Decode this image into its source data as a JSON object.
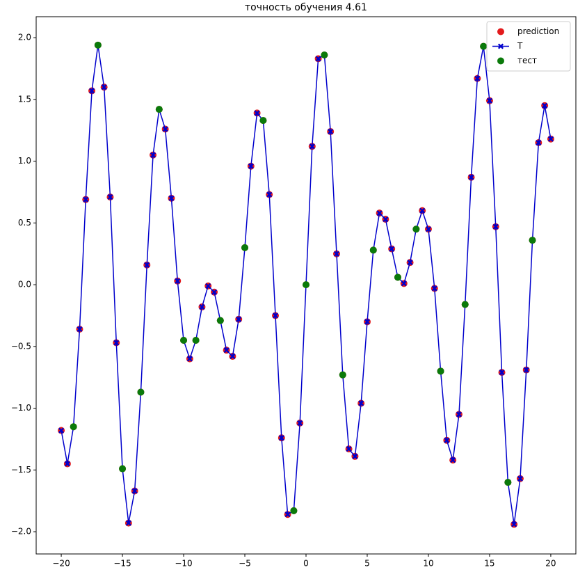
{
  "chart_data": {
    "type": "scatter-line",
    "title": "точность обучения 4.61",
    "xlim": [
      -22.05,
      22.05
    ],
    "ylim": [
      -2.18,
      2.17
    ],
    "xticks": [
      {
        "value": -20,
        "label": "−20"
      },
      {
        "value": -15,
        "label": "−15"
      },
      {
        "value": -10,
        "label": "−10"
      },
      {
        "value": -5,
        "label": "−5"
      },
      0,
      5,
      10,
      15,
      20
    ],
    "yticks": [
      {
        "value": -2,
        "label": "−2.0"
      },
      {
        "value": -1.5,
        "label": "−1.5"
      },
      {
        "value": -1,
        "label": "−1.0"
      },
      {
        "value": -0.5,
        "label": "−0.5"
      },
      {
        "value": 0,
        "label": "0.0"
      },
      0.5,
      {
        "value": 1,
        "label": "1.0"
      },
      1.5,
      {
        "value": 2,
        "label": "2.0"
      }
    ],
    "grid": false,
    "legend": "upper right",
    "series": [
      {
        "name": "prediction",
        "kind": "scatter",
        "color": "#e31a1c",
        "x": [
          -20,
          -19.5,
          -19,
          -18.5,
          -18,
          -17.5,
          -17,
          -16.5,
          -16,
          -15.5,
          -15,
          -14.5,
          -14,
          -13.5,
          -13,
          -12.5,
          -12,
          -11.5,
          -11,
          -10.5,
          -10,
          -9.5,
          -9,
          -8.5,
          -8,
          -7.5,
          -7,
          -6.5,
          -6,
          -5.5,
          -5,
          -4.5,
          -4,
          -3.5,
          -3,
          -2.5,
          -2,
          -1.5,
          -1,
          -0.5,
          0,
          0.5,
          1,
          1.5,
          2,
          2.5,
          3,
          3.5,
          4,
          4.5,
          5,
          5.5,
          6,
          6.5,
          7,
          7.5,
          8,
          8.5,
          9,
          9.5,
          10,
          10.5,
          11,
          11.5,
          12,
          12.5,
          13,
          13.5,
          14,
          14.5,
          15,
          15.5,
          16,
          16.5,
          17,
          17.5,
          18,
          18.5,
          19,
          19.5,
          20
        ],
        "values": [
          -1.18,
          -1.45,
          -1.15,
          -0.36,
          0.69,
          1.57,
          1.94,
          1.6,
          0.71,
          -0.47,
          -1.49,
          -1.93,
          -1.67,
          -0.87,
          0.16,
          1.05,
          1.42,
          1.26,
          0.7,
          0.03,
          -0.45,
          -0.6,
          -0.45,
          -0.18,
          -0.01,
          -0.06,
          -0.29,
          -0.53,
          -0.58,
          -0.28,
          0.3,
          0.96,
          1.39,
          1.33,
          0.73,
          -0.25,
          -1.24,
          -1.86,
          -1.83,
          -1.12,
          0,
          1.12,
          1.83,
          1.86,
          1.24,
          0.25,
          -0.73,
          -1.33,
          -1.39,
          -0.96,
          -0.3,
          0.28,
          0.58,
          0.53,
          0.29,
          0.06,
          0.01,
          0.18,
          0.45,
          0.6,
          0.45,
          -0.03,
          -0.7,
          -1.26,
          -1.42,
          -1.05,
          -0.16,
          0.87,
          1.67,
          1.93,
          1.49,
          0.47,
          -0.71,
          -1.6,
          -1.94,
          -1.57,
          -0.69,
          0.36,
          1.15,
          1.45,
          1.18
        ]
      },
      {
        "name": "T",
        "kind": "line",
        "color": "#0000cc",
        "x": [
          -20,
          -19.5,
          -19,
          -18.5,
          -18,
          -17.5,
          -17,
          -16.5,
          -16,
          -15.5,
          -15,
          -14.5,
          -14,
          -13.5,
          -13,
          -12.5,
          -12,
          -11.5,
          -11,
          -10.5,
          -10,
          -9.5,
          -9,
          -8.5,
          -8,
          -7.5,
          -7,
          -6.5,
          -6,
          -5.5,
          -5,
          -4.5,
          -4,
          -3.5,
          -3,
          -2.5,
          -2,
          -1.5,
          -1,
          -0.5,
          0,
          0.5,
          1,
          1.5,
          2,
          2.5,
          3,
          3.5,
          4,
          4.5,
          5,
          5.5,
          6,
          6.5,
          7,
          7.5,
          8,
          8.5,
          9,
          9.5,
          10,
          10.5,
          11,
          11.5,
          12,
          12.5,
          13,
          13.5,
          14,
          14.5,
          15,
          15.5,
          16,
          16.5,
          17,
          17.5,
          18,
          18.5,
          19,
          19.5,
          20
        ],
        "values": [
          -1.18,
          -1.45,
          -1.15,
          -0.36,
          0.69,
          1.57,
          1.94,
          1.6,
          0.71,
          -0.47,
          -1.49,
          -1.93,
          -1.67,
          -0.87,
          0.16,
          1.05,
          1.42,
          1.26,
          0.7,
          0.03,
          -0.45,
          -0.6,
          -0.45,
          -0.18,
          -0.01,
          -0.06,
          -0.29,
          -0.53,
          -0.58,
          -0.28,
          0.3,
          0.96,
          1.39,
          1.33,
          0.73,
          -0.25,
          -1.24,
          -1.86,
          -1.83,
          -1.12,
          0,
          1.12,
          1.83,
          1.86,
          1.24,
          0.25,
          -0.73,
          -1.33,
          -1.39,
          -0.96,
          -0.3,
          0.28,
          0.58,
          0.53,
          0.29,
          0.06,
          0.01,
          0.18,
          0.45,
          0.6,
          0.45,
          -0.03,
          -0.7,
          -1.26,
          -1.42,
          -1.05,
          -0.16,
          0.87,
          1.67,
          1.93,
          1.49,
          0.47,
          -0.71,
          -1.6,
          -1.94,
          -1.57,
          -0.69,
          0.36,
          1.15,
          1.45,
          1.18
        ]
      },
      {
        "name": "тест",
        "kind": "scatter",
        "color": "#0a7a0a",
        "x": [
          -19,
          -17,
          -15,
          -13.5,
          -12,
          -10,
          -9,
          -7,
          -5,
          -3.5,
          -1,
          0,
          1.5,
          3,
          5.5,
          7.5,
          9,
          11,
          13,
          14.5,
          16.5,
          18.5
        ],
        "values": [
          -1.15,
          1.94,
          -1.49,
          -0.87,
          1.42,
          -0.45,
          -0.45,
          -0.29,
          0.3,
          1.33,
          -1.83,
          0,
          1.86,
          -0.73,
          0.28,
          0.06,
          0.45,
          -0.7,
          -0.16,
          1.93,
          -1.6,
          0.36
        ]
      }
    ]
  }
}
